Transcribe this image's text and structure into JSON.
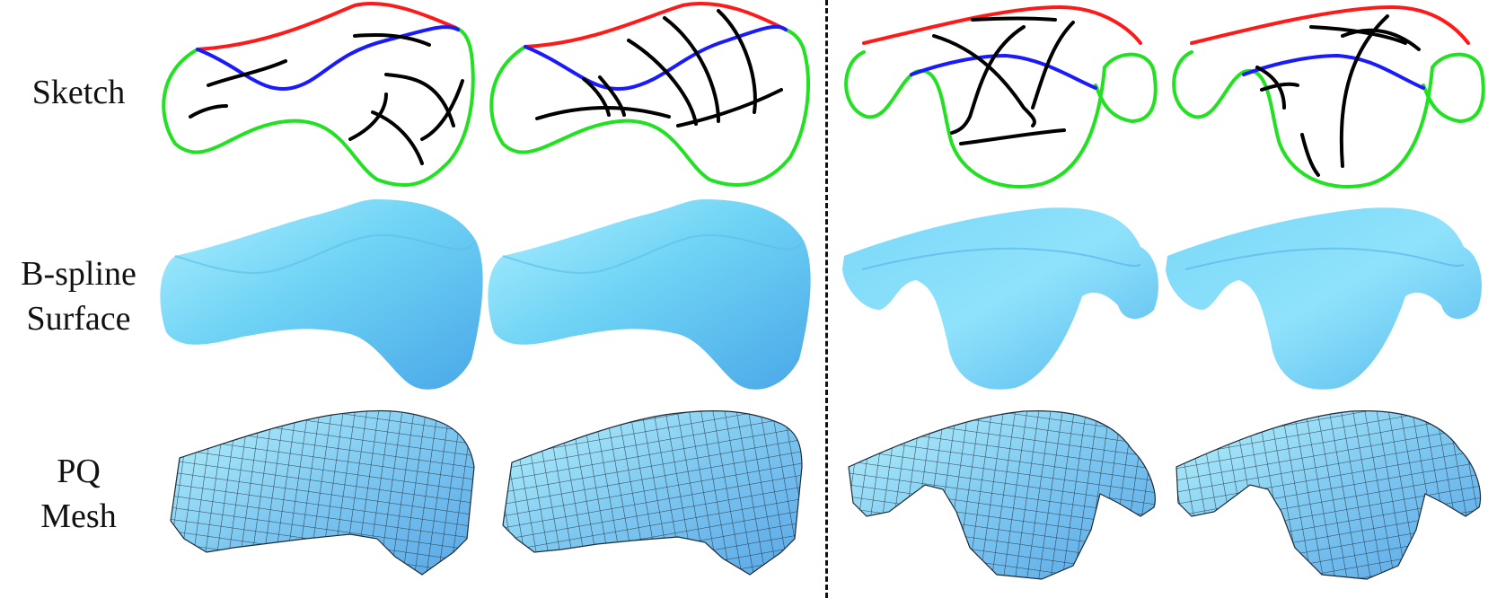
{
  "rows": {
    "sketch": {
      "label": "Sketch"
    },
    "bspline": {
      "label_line1": "B-spline",
      "label_line2": "Surface"
    },
    "pq": {
      "label_line1": "PQ",
      "label_line2": "Mesh"
    }
  },
  "colors": {
    "top_boundary": "#ff1a1a",
    "side_boundary": "#22e022",
    "mid_curve": "#1a1aff",
    "strokes": "#000000",
    "surface": "#6fd3f5",
    "mesh_fill": "#7ec8f0",
    "mesh_line": "#1d2b3a"
  }
}
